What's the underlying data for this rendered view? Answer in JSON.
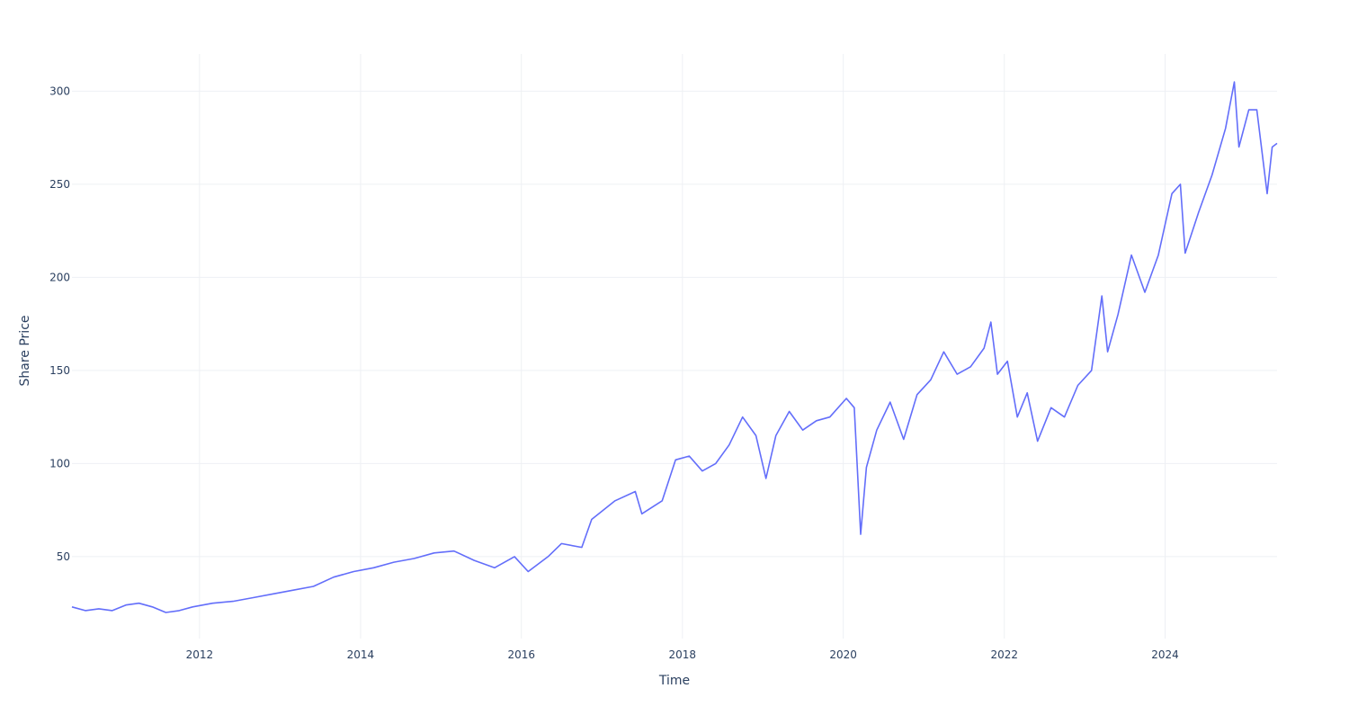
{
  "chart_data": {
    "type": "line",
    "title": "",
    "xlabel": "Time",
    "ylabel": "Share Price",
    "x_tick_labels": [
      "2012",
      "2014",
      "2016",
      "2018",
      "2020",
      "2022",
      "2024"
    ],
    "y_tick_labels": [
      "50",
      "100",
      "150",
      "200",
      "250",
      "300"
    ],
    "y_ticks": [
      50,
      100,
      150,
      200,
      250,
      300
    ],
    "xlim": [
      "2010-06-01",
      "2025-05-23"
    ],
    "ylim": [
      6,
      320
    ],
    "grid": true,
    "legend": "none",
    "colors": {
      "line": "#636efa",
      "grid": "#eef0f4",
      "text": "#2a3f5f"
    },
    "series": [
      {
        "values": [
          [
            "2010-06-01",
            23
          ],
          [
            "2010-08-01",
            21
          ],
          [
            "2010-10-01",
            22
          ],
          [
            "2010-12-01",
            21
          ],
          [
            "2011-02-01",
            24
          ],
          [
            "2011-04-01",
            25
          ],
          [
            "2011-06-01",
            23
          ],
          [
            "2011-08-01",
            20
          ],
          [
            "2011-10-01",
            21
          ],
          [
            "2011-12-01",
            23
          ],
          [
            "2012-03-01",
            25
          ],
          [
            "2012-06-01",
            26
          ],
          [
            "2012-09-01",
            28
          ],
          [
            "2012-12-01",
            30
          ],
          [
            "2013-03-01",
            32
          ],
          [
            "2013-06-01",
            34
          ],
          [
            "2013-09-01",
            39
          ],
          [
            "2013-12-01",
            42
          ],
          [
            "2014-03-01",
            44
          ],
          [
            "2014-06-01",
            47
          ],
          [
            "2014-09-01",
            49
          ],
          [
            "2014-12-01",
            52
          ],
          [
            "2015-03-01",
            53
          ],
          [
            "2015-06-01",
            48
          ],
          [
            "2015-09-01",
            44
          ],
          [
            "2015-12-01",
            50
          ],
          [
            "2016-02-01",
            42
          ],
          [
            "2016-05-01",
            50
          ],
          [
            "2016-07-01",
            57
          ],
          [
            "2016-10-01",
            55
          ],
          [
            "2016-11-15",
            70
          ],
          [
            "2017-03-01",
            80
          ],
          [
            "2017-06-01",
            85
          ],
          [
            "2017-07-01",
            73
          ],
          [
            "2017-10-01",
            80
          ],
          [
            "2017-12-01",
            102
          ],
          [
            "2018-02-01",
            104
          ],
          [
            "2018-04-01",
            96
          ],
          [
            "2018-06-01",
            100
          ],
          [
            "2018-08-01",
            110
          ],
          [
            "2018-10-01",
            125
          ],
          [
            "2018-12-01",
            115
          ],
          [
            "2019-01-15",
            92
          ],
          [
            "2019-03-01",
            115
          ],
          [
            "2019-05-01",
            128
          ],
          [
            "2019-07-01",
            118
          ],
          [
            "2019-09-01",
            123
          ],
          [
            "2019-11-01",
            125
          ],
          [
            "2020-01-15",
            135
          ],
          [
            "2020-02-20",
            130
          ],
          [
            "2020-03-20",
            62
          ],
          [
            "2020-04-15",
            98
          ],
          [
            "2020-06-01",
            118
          ],
          [
            "2020-08-01",
            133
          ],
          [
            "2020-10-01",
            113
          ],
          [
            "2020-12-01",
            137
          ],
          [
            "2021-02-01",
            145
          ],
          [
            "2021-04-01",
            160
          ],
          [
            "2021-06-01",
            148
          ],
          [
            "2021-08-01",
            152
          ],
          [
            "2021-10-01",
            162
          ],
          [
            "2021-11-01",
            176
          ],
          [
            "2021-12-01",
            148
          ],
          [
            "2022-01-15",
            155
          ],
          [
            "2022-03-01",
            125
          ],
          [
            "2022-04-15",
            138
          ],
          [
            "2022-06-01",
            112
          ],
          [
            "2022-08-01",
            130
          ],
          [
            "2022-10-01",
            125
          ],
          [
            "2022-12-01",
            142
          ],
          [
            "2023-02-01",
            150
          ],
          [
            "2023-03-20",
            190
          ],
          [
            "2023-04-15",
            160
          ],
          [
            "2023-06-01",
            180
          ],
          [
            "2023-08-01",
            212
          ],
          [
            "2023-10-01",
            192
          ],
          [
            "2023-12-01",
            212
          ],
          [
            "2024-02-01",
            245
          ],
          [
            "2024-03-10",
            250
          ],
          [
            "2024-04-01",
            213
          ],
          [
            "2024-06-01",
            235
          ],
          [
            "2024-08-01",
            255
          ],
          [
            "2024-10-01",
            280
          ],
          [
            "2024-11-10",
            305
          ],
          [
            "2024-12-01",
            270
          ],
          [
            "2025-01-15",
            290
          ],
          [
            "2025-02-20",
            290
          ],
          [
            "2025-04-08",
            245
          ],
          [
            "2025-05-01",
            270
          ],
          [
            "2025-05-23",
            272
          ]
        ]
      }
    ]
  }
}
